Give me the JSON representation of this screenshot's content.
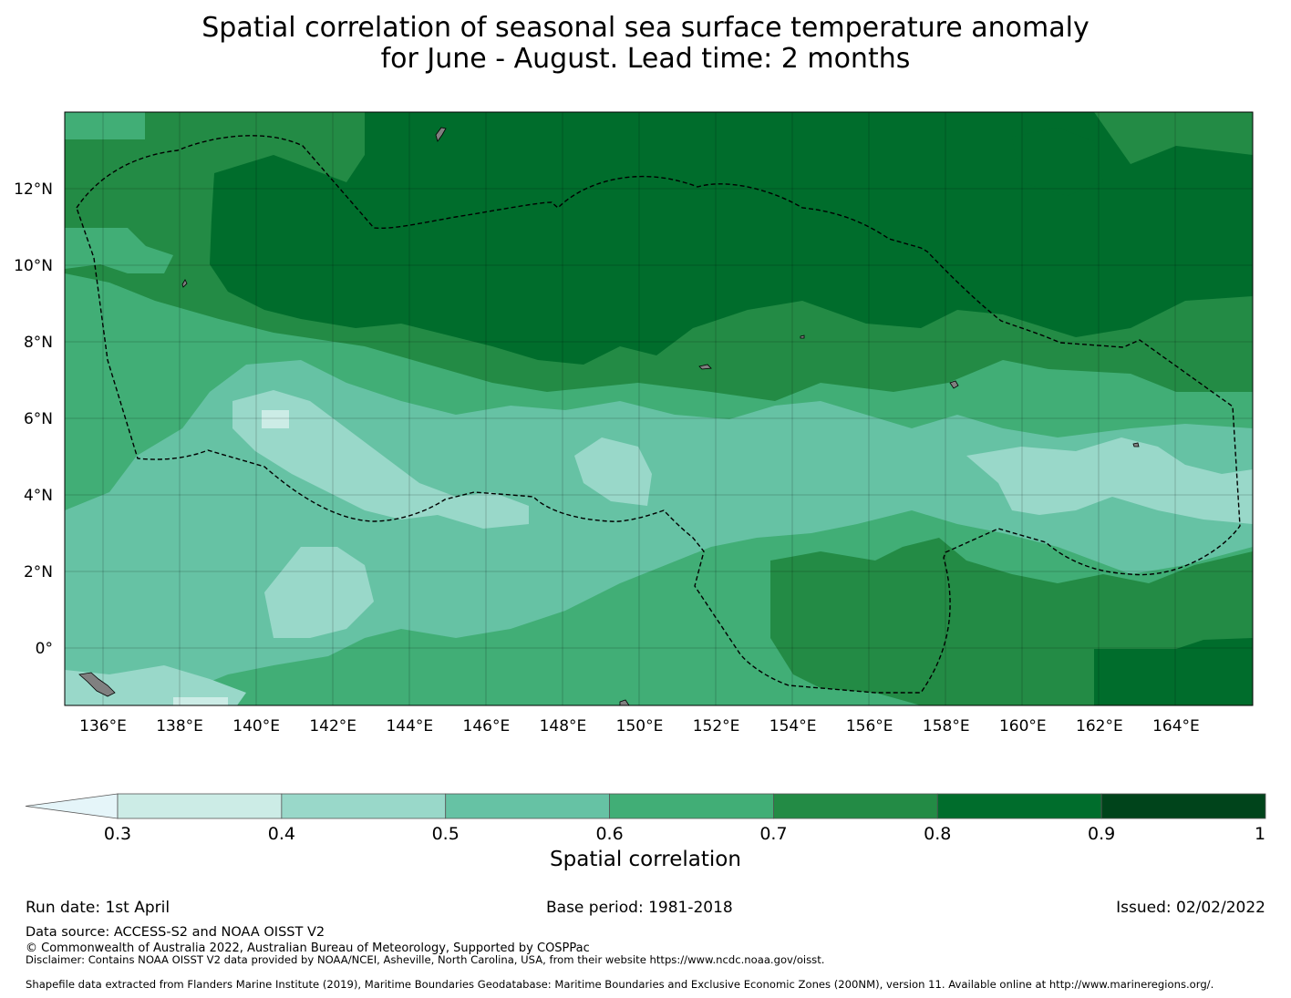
{
  "title": {
    "line1": "Spatial correlation of seasonal sea surface temperature anomaly",
    "line2": "for June - August. Lead time: 2 months"
  },
  "map": {
    "lon_labels": [
      "136°E",
      "138°E",
      "140°E",
      "142°E",
      "144°E",
      "146°E",
      "148°E",
      "150°E",
      "152°E",
      "154°E",
      "156°E",
      "158°E",
      "160°E",
      "162°E",
      "164°E"
    ],
    "lat_labels": [
      "12°N",
      "10°N",
      "8°N",
      "6°N",
      "4°N",
      "2°N",
      "0°"
    ],
    "lon_values": [
      136,
      138,
      140,
      142,
      144,
      146,
      148,
      150,
      152,
      154,
      156,
      158,
      160,
      162,
      164
    ],
    "lat_values": [
      12,
      10,
      8,
      6,
      4,
      2,
      0
    ],
    "extent": {
      "lon_min": 135,
      "lon_max": 166,
      "lat_min": -1.5,
      "lat_max": 14
    },
    "land_color": "#808080",
    "boundary_style": "dashed black line (EEZ)"
  },
  "colorbar": {
    "ticks": [
      "0.3",
      "0.4",
      "0.5",
      "0.6",
      "0.7",
      "0.8",
      "0.9",
      "1"
    ],
    "colors": [
      "#ccece6",
      "#99d8c9",
      "#66c2a4",
      "#41ae76",
      "#238b45",
      "#006d2c",
      "#00441b"
    ],
    "under_color": "#e5f5f9",
    "extend": "min",
    "label": "Spatial correlation"
  },
  "footer": {
    "run_date": "Run date: 1st April",
    "base_period": "Base period: 1981-2018",
    "issued": "Issued: 02/02/2022",
    "data_source": "Data source: ACCESS-S2 and NOAA OISST V2",
    "copyright": "© Commonwealth of Australia 2022, Australian Bureau of Meteorology, Supported by COSPPac",
    "disclaimer": "Disclaimer: Contains NOAA OISST V2 data provided by NOAA/NCEI, Asheville, North Carolina, USA, from their website https://www.ncdc.noaa.gov/oisst.",
    "shapefile": "Shapefile data extracted from Flanders Marine Institute (2019), Maritime Boundaries Geodatabase: Maritime Boundaries and Exclusive Economic Zones (200NM), version 11. Available online at http://www.marineregions.org/."
  }
}
